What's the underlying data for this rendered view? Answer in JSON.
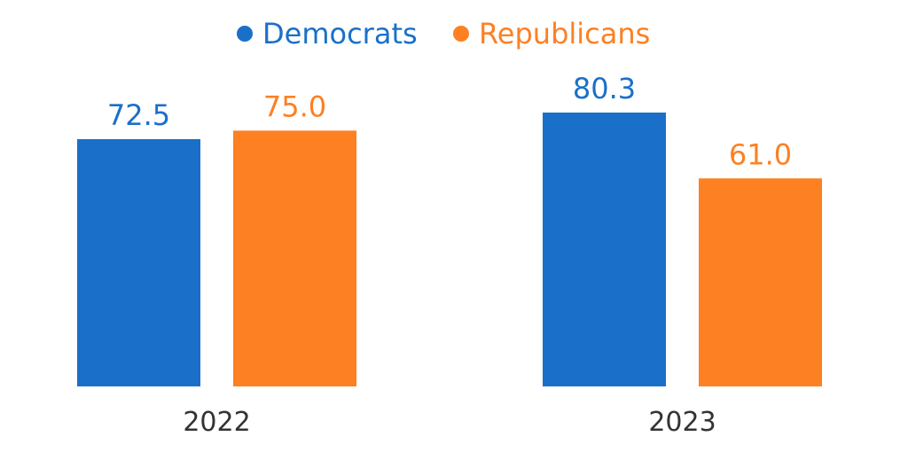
{
  "chart_data": {
    "type": "bar",
    "categories": [
      "2022",
      "2023"
    ],
    "series": [
      {
        "name": "Democrats",
        "color": "#1a70c8",
        "values": [
          72.5,
          80.3
        ]
      },
      {
        "name": "Republicans",
        "color": "#fd8023",
        "values": [
          75.0,
          61.0
        ]
      }
    ],
    "value_labels": [
      [
        "72.5",
        "80.3"
      ],
      [
        "75.0",
        "61.0"
      ]
    ],
    "title": "",
    "xlabel": "",
    "ylabel": "",
    "ylim": [
      0,
      80.3
    ],
    "grid": false,
    "legend": "top-center"
  }
}
